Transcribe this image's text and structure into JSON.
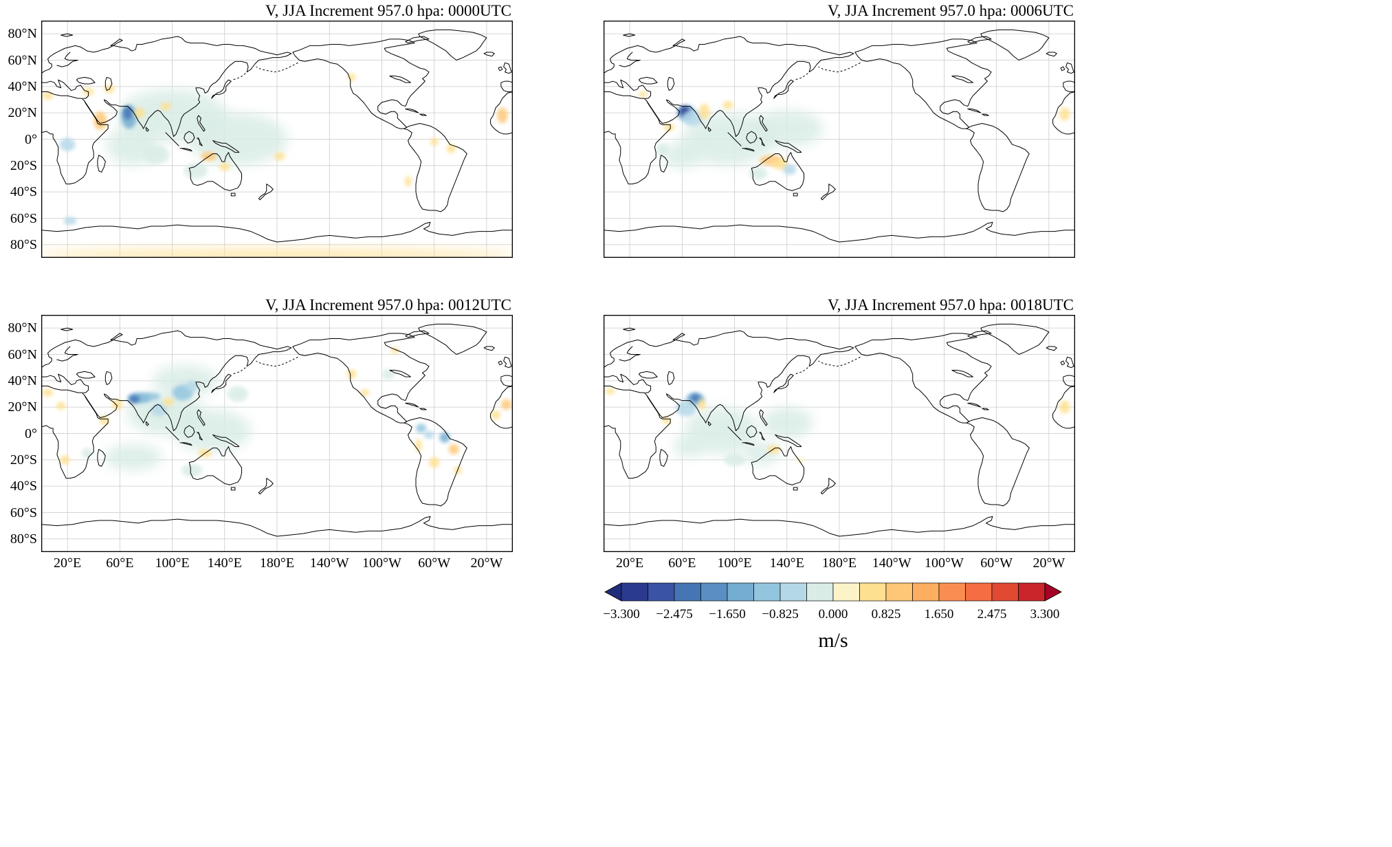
{
  "chart_data": {
    "type": "heatmap",
    "description_title": "Meridional wind (V) JJA analysis increments at 957.0 hPa, four synoptic times, global maps",
    "axes": {
      "lat_labels": [
        "80°N",
        "60°N",
        "40°N",
        "20°N",
        "0°",
        "20°S",
        "40°S",
        "60°S",
        "80°S"
      ],
      "lon_labels": [
        "20°E",
        "60°E",
        "100°E",
        "140°E",
        "180°E",
        "140°W",
        "100°W",
        "60°W",
        "20°W"
      ],
      "lon_range_deg_east": [
        0,
        360
      ],
      "lat_range": [
        -90,
        90
      ],
      "grid": true
    },
    "panels": [
      {
        "title": "V, JJA Increment 957.0 hpa: 0000UTC",
        "time": "0000UTC",
        "blobs": [
          [
            100,
            18,
            42,
            20,
            -0.2
          ],
          [
            150,
            0,
            38,
            20,
            -0.2
          ],
          [
            70,
            -5,
            20,
            15,
            -0.2
          ],
          [
            67,
            17,
            6,
            9,
            -1.4
          ],
          [
            66,
            20,
            3.5,
            5,
            -2.3
          ],
          [
            20,
            -4,
            6,
            5,
            -0.5
          ],
          [
            22,
            -62,
            5,
            3,
            -0.6
          ],
          [
            118,
            -24,
            9,
            6,
            -0.4
          ],
          [
            88,
            -12,
            10,
            7,
            -0.4
          ],
          [
            45,
            14,
            5,
            7,
            0.9
          ],
          [
            36,
            36,
            4,
            3,
            0.7
          ],
          [
            52,
            38,
            4,
            3,
            0.6
          ],
          [
            5,
            33,
            4,
            3,
            0.8
          ],
          [
            352,
            18,
            4,
            6,
            0.9
          ],
          [
            128,
            -13,
            6,
            3.5,
            0.9
          ],
          [
            140,
            -21,
            4,
            3,
            0.6
          ],
          [
            182,
            -13,
            4,
            3,
            0.8
          ],
          [
            313,
            -7,
            3.5,
            3.5,
            0.8
          ],
          [
            300,
            -2,
            3,
            3,
            0.5
          ],
          [
            280,
            -32,
            2.5,
            4,
            0.6
          ],
          [
            237,
            47,
            3,
            3,
            0.6
          ],
          [
            180,
            -88,
            185,
            4,
            0.8
          ],
          [
            95,
            25,
            4,
            3,
            0.5
          ],
          [
            75,
            20,
            4,
            4,
            0.6
          ]
        ]
      },
      {
        "title": "V, JJA Increment 957.0 hpa: 0006UTC",
        "time": "0006UTC",
        "blobs": [
          [
            95,
            0,
            35,
            20,
            -0.25
          ],
          [
            140,
            8,
            28,
            14,
            -0.15
          ],
          [
            60,
            -12,
            15,
            10,
            -0.3
          ],
          [
            63,
            20,
            7,
            6,
            -1.6
          ],
          [
            62,
            21,
            4,
            4,
            -2.9
          ],
          [
            68,
            16,
            8,
            6,
            -0.8
          ],
          [
            77,
            21,
            4,
            6,
            0.8
          ],
          [
            128,
            -16,
            9,
            4,
            0.9
          ],
          [
            135,
            -19,
            6,
            4,
            0.7
          ],
          [
            50,
            9,
            4,
            3,
            0.6
          ],
          [
            352,
            19,
            4,
            5,
            0.8
          ],
          [
            30,
            34,
            3,
            2.5,
            0.5
          ],
          [
            95,
            26,
            4,
            3,
            0.5
          ],
          [
            142,
            -23,
            5,
            4,
            -0.6
          ],
          [
            45,
            -8,
            5,
            5,
            -0.4
          ],
          [
            118,
            -26,
            7,
            5,
            -0.35
          ]
        ]
      },
      {
        "title": "V, JJA Increment 957.0 hpa: 0012UTC",
        "time": "0012UTC",
        "blobs": [
          [
            95,
            15,
            30,
            16,
            -0.3
          ],
          [
            130,
            2,
            30,
            16,
            -0.2
          ],
          [
            70,
            -18,
            22,
            10,
            -0.35
          ],
          [
            110,
            40,
            25,
            12,
            -0.2
          ],
          [
            75,
            27,
            9,
            4,
            -1.6
          ],
          [
            71,
            26,
            4,
            3,
            -2.4
          ],
          [
            84,
            28,
            7,
            3,
            -1.0
          ],
          [
            108,
            31,
            8,
            6,
            -1.1
          ],
          [
            115,
            36,
            5,
            4,
            -0.8
          ],
          [
            90,
            18,
            6,
            5,
            -0.7
          ],
          [
            290,
            4,
            4,
            3.5,
            -1.2
          ],
          [
            308,
            -3,
            4,
            4,
            -1.5
          ],
          [
            296,
            -1,
            4,
            3,
            -0.8
          ],
          [
            315,
            -12,
            4,
            4,
            0.9
          ],
          [
            300,
            -22,
            4,
            4,
            0.7
          ],
          [
            288,
            -9,
            2.5,
            5,
            0.6
          ],
          [
            318,
            -28,
            3,
            3,
            0.5
          ],
          [
            5,
            31,
            4,
            3,
            0.8
          ],
          [
            355,
            22,
            4,
            4,
            0.9
          ],
          [
            347,
            14,
            3.5,
            3.5,
            0.7
          ],
          [
            15,
            21,
            3.5,
            3,
            0.6
          ],
          [
            48,
            10,
            3.5,
            3.5,
            0.7
          ],
          [
            18,
            -20,
            3.5,
            3.5,
            0.6
          ],
          [
            58,
            22,
            4,
            4,
            0.6
          ],
          [
            97,
            24,
            4,
            3,
            0.7
          ],
          [
            237,
            45,
            3.5,
            3.5,
            0.8
          ],
          [
            247,
            31,
            3.5,
            2.5,
            0.6
          ],
          [
            125,
            -15,
            5,
            3,
            0.6
          ],
          [
            270,
            63,
            3,
            2.5,
            0.5
          ],
          [
            35,
            -15,
            4,
            4,
            -0.4
          ],
          [
            115,
            -28,
            8,
            5,
            -0.35
          ],
          [
            265,
            45,
            5,
            4,
            -0.3
          ],
          [
            150,
            30,
            8,
            6,
            -0.3
          ]
        ]
      },
      {
        "title": "V, JJA Increment 957.0 hpa: 0018UTC",
        "time": "0018UTC",
        "blobs": [
          [
            90,
            2,
            28,
            18,
            -0.25
          ],
          [
            120,
            -15,
            14,
            9,
            -0.4
          ],
          [
            140,
            8,
            20,
            12,
            -0.15
          ],
          [
            65,
            -10,
            12,
            8,
            -0.3
          ],
          [
            70,
            26,
            7,
            5,
            -1.6
          ],
          [
            70,
            27,
            3.5,
            3,
            -2.2
          ],
          [
            63,
            19,
            8,
            6,
            -0.6
          ],
          [
            130,
            -12,
            5,
            3,
            0.6
          ],
          [
            352,
            20,
            4,
            5,
            0.7
          ],
          [
            5,
            32,
            3.5,
            2.5,
            0.5
          ],
          [
            48,
            10,
            3,
            3,
            0.5
          ],
          [
            150,
            -20,
            3,
            2.5,
            0.4
          ],
          [
            75,
            22,
            3,
            4,
            0.5
          ],
          [
            100,
            -20,
            8,
            5,
            -0.4
          ]
        ]
      }
    ],
    "colorbar": {
      "tick_labels": [
        "−3.300",
        "−2.475",
        "−1.650",
        "−0.825",
        "0.000",
        "0.825",
        "1.650",
        "2.475",
        "3.300"
      ],
      "vmin": -3.3,
      "vmax": 3.3,
      "unit": "m/s",
      "segment_colors": [
        "#2b3a8f",
        "#3a53a4",
        "#4575b4",
        "#5b8fc4",
        "#74add1",
        "#93c5de",
        "#b5d8e8",
        "#d9ece6",
        "#fdf3c8",
        "#fee090",
        "#fdc777",
        "#fdae61",
        "#f98e52",
        "#f46d43",
        "#e04a33",
        "#c9252b"
      ],
      "arrow_left_color": "#1f2d7a",
      "arrow_right_color": "#a50026"
    }
  }
}
